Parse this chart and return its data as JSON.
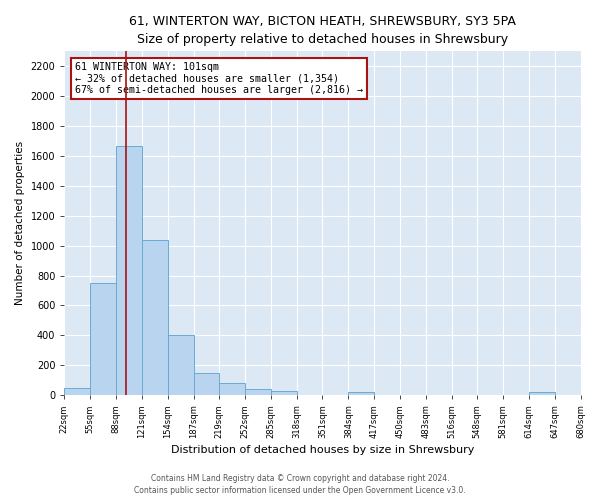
{
  "title": "61, WINTERTON WAY, BICTON HEATH, SHREWSBURY, SY3 5PA",
  "subtitle": "Size of property relative to detached houses in Shrewsbury",
  "bar_color": "#b8d4ee",
  "bar_edge_color": "#6aaad4",
  "bin_edges": [
    22,
    55,
    88,
    121,
    154,
    187,
    219,
    252,
    285,
    318,
    351,
    384,
    417,
    450,
    483,
    516,
    548,
    581,
    614,
    647,
    680
  ],
  "bin_labels": [
    "22sqm",
    "55sqm",
    "88sqm",
    "121sqm",
    "154sqm",
    "187sqm",
    "219sqm",
    "252sqm",
    "285sqm",
    "318sqm",
    "351sqm",
    "384sqm",
    "417sqm",
    "450sqm",
    "483sqm",
    "516sqm",
    "548sqm",
    "581sqm",
    "614sqm",
    "647sqm",
    "680sqm"
  ],
  "bar_heights": [
    50,
    750,
    1670,
    1040,
    405,
    150,
    80,
    40,
    25,
    0,
    0,
    20,
    0,
    0,
    0,
    0,
    0,
    0,
    20,
    0
  ],
  "vline_x": 101,
  "vline_color": "#aa1111",
  "ylabel": "Number of detached properties",
  "xlabel": "Distribution of detached houses by size in Shrewsbury",
  "ylim": [
    0,
    2300
  ],
  "yticks": [
    0,
    200,
    400,
    600,
    800,
    1000,
    1200,
    1400,
    1600,
    1800,
    2000,
    2200
  ],
  "annotation_box_text": "61 WINTERTON WAY: 101sqm\n← 32% of detached houses are smaller (1,354)\n67% of semi-detached houses are larger (2,816) →",
  "footer_text": "Contains HM Land Registry data © Crown copyright and database right 2024.\nContains public sector information licensed under the Open Government Licence v3.0.",
  "plot_bg_color": "#dce9f5",
  "fig_bg_color": "#ffffff"
}
